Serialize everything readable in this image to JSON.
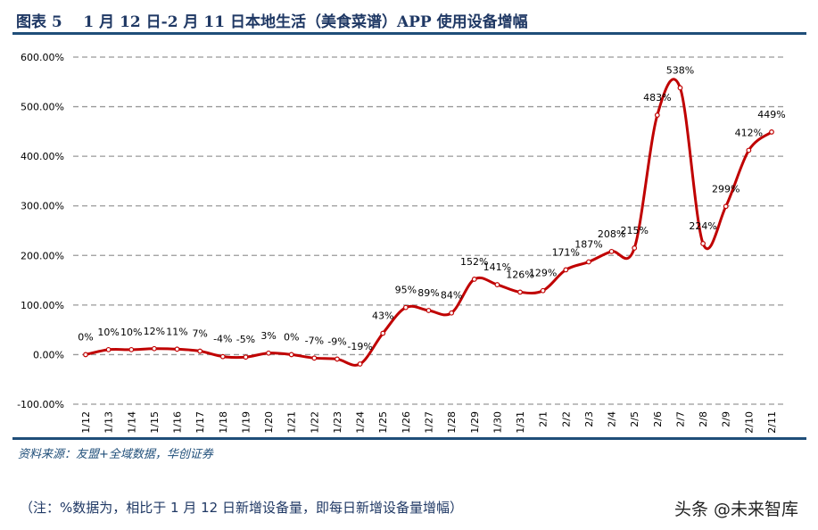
{
  "title": "图表 5    1 月 12 日-2 月 11 日本地生活（美食菜谱）APP 使用设备增幅",
  "source": "资料来源：友盟+全域数据，华创证券",
  "note": "（注：%数据为，相比于 1 月 12 日新增设备量，即每日新增设备量增幅）",
  "watermark": "头条 @未来智库",
  "colors": {
    "line": "#c00000",
    "title": "#1f3864",
    "rule": "#1f4e79",
    "grid": "#999999"
  },
  "chart_data": {
    "type": "line",
    "smooth": true,
    "grid": true,
    "ylim": [
      -100,
      600
    ],
    "yticks": [
      -100,
      0,
      100,
      200,
      300,
      400,
      500,
      600
    ],
    "ytick_labels": [
      "-100.00%",
      "0.00%",
      "100.00%",
      "200.00%",
      "300.00%",
      "400.00%",
      "500.00%",
      "600.00%"
    ],
    "categories": [
      "1/12",
      "1/13",
      "1/14",
      "1/15",
      "1/16",
      "1/17",
      "1/18",
      "1/19",
      "1/20",
      "1/21",
      "1/22",
      "1/23",
      "1/24",
      "1/25",
      "1/26",
      "1/27",
      "1/28",
      "1/29",
      "1/30",
      "1/31",
      "2/1",
      "2/2",
      "2/3",
      "2/4",
      "2/5",
      "2/6",
      "2/7",
      "2/8",
      "2/9",
      "2/10",
      "2/11"
    ],
    "values": [
      0,
      10,
      10,
      12,
      11,
      7,
      -4,
      -5,
      3,
      0,
      -7,
      -9,
      -19,
      43,
      95,
      89,
      84,
      152,
      141,
      126,
      129,
      171,
      187,
      208,
      215,
      483,
      538,
      224,
      299,
      412,
      449
    ],
    "labels": [
      "0%",
      "10%",
      "10%",
      "12%",
      "11%",
      "7%",
      "-4%",
      "-5%",
      "3%",
      "0%",
      "-7%",
      "-9%",
      "-19%",
      "43%",
      "95%",
      "89%",
      "84%",
      "152%",
      "141%",
      "126%",
      "129%",
      "171%",
      "187%",
      "208%",
      "215%",
      "483%",
      "538%",
      "224%",
      "299%",
      "412%",
      "449%"
    ]
  }
}
